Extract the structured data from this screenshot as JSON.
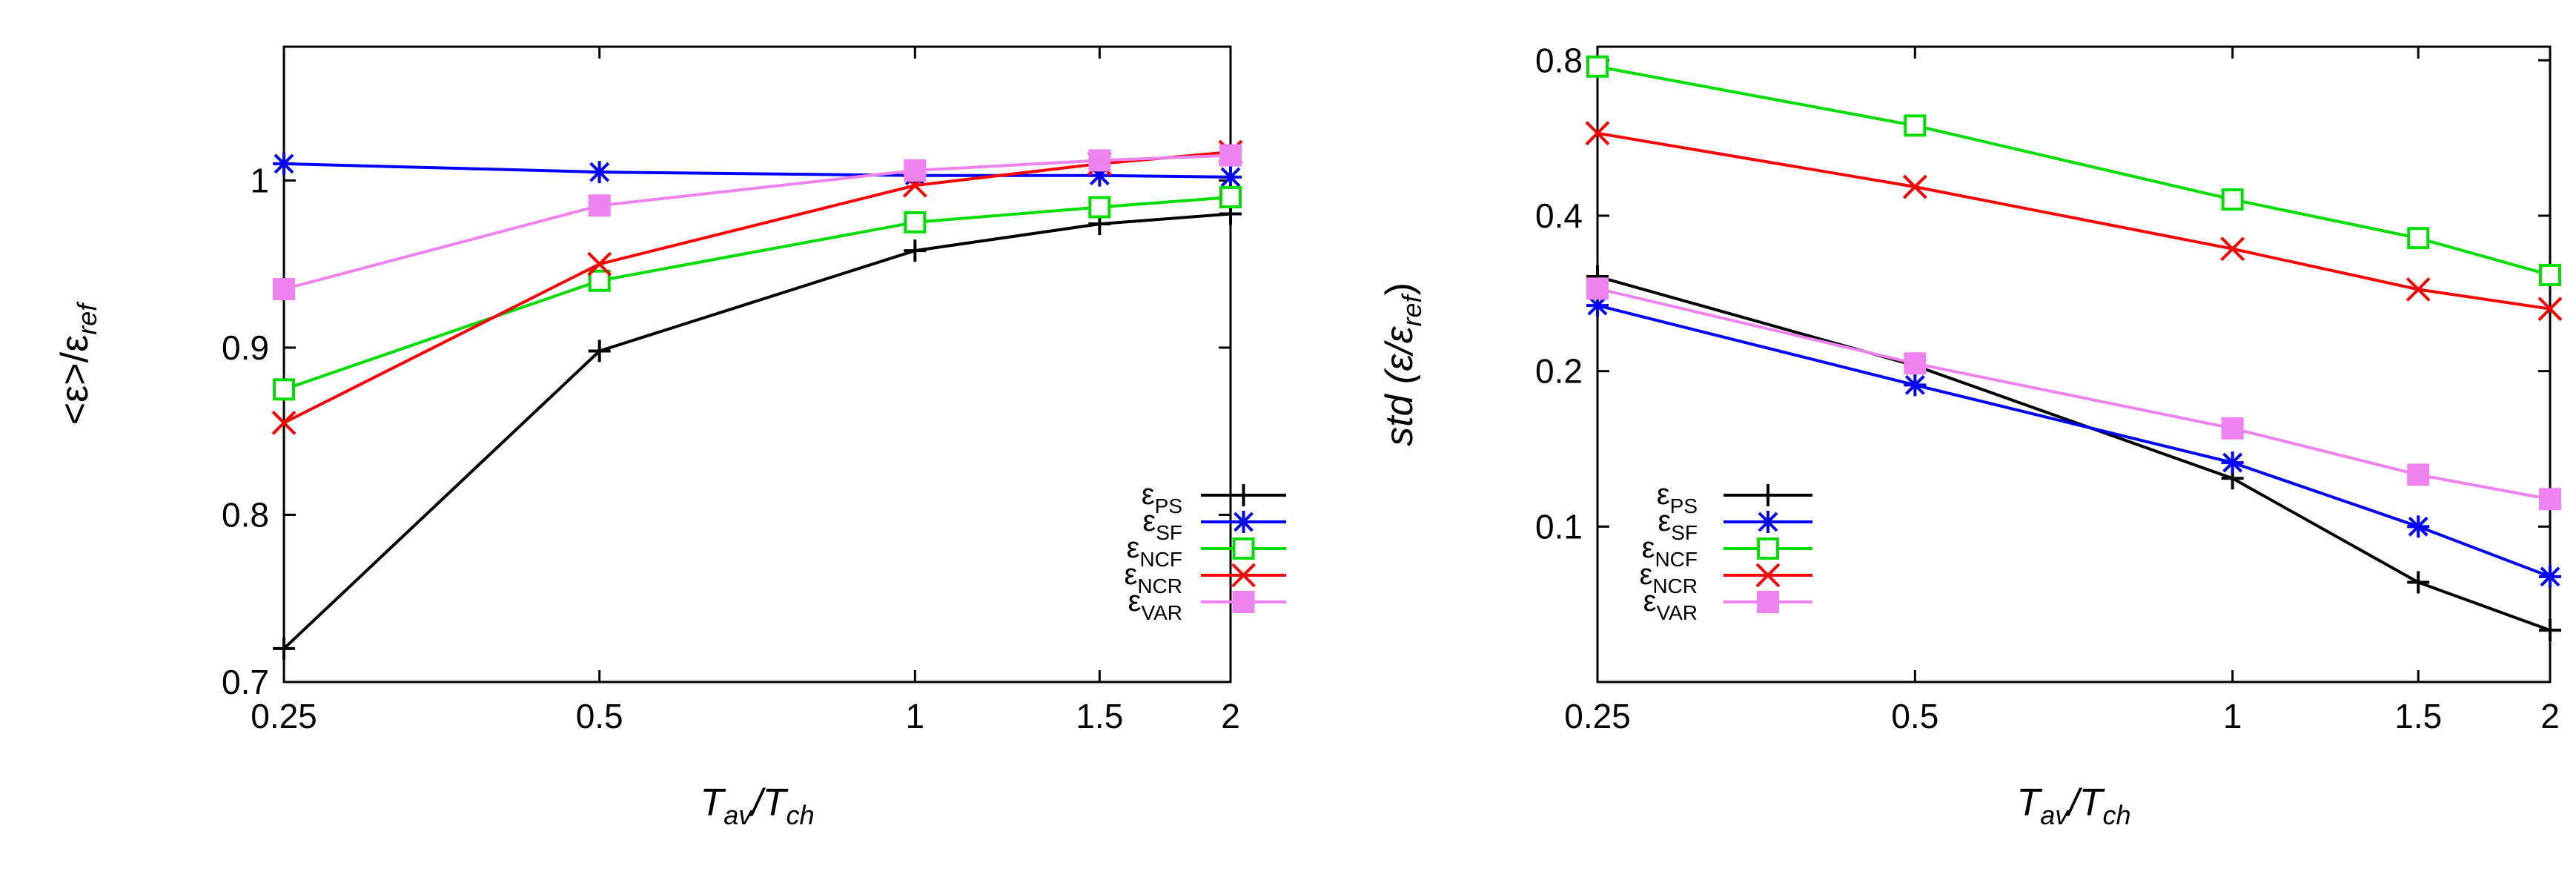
{
  "chart_data": [
    {
      "type": "line",
      "ylabel": "<ε>/ε_ref",
      "xlabel": "T_av/T_ch",
      "x": [
        0.25,
        0.5,
        1,
        1.5,
        2
      ],
      "x_tick_labels": [
        "0.25",
        "0.5",
        "1",
        "1.5",
        "2"
      ],
      "xscale": "log",
      "xlim": [
        0.25,
        2
      ],
      "y_ticks": [
        0.7,
        0.8,
        0.9,
        1
      ],
      "y_tick_labels": [
        "0.7",
        "0.8",
        "0.9",
        "1"
      ],
      "ylim": [
        0.7,
        1.08
      ],
      "yscale": "linear",
      "grid": false,
      "legend_position": "bottom-right",
      "series": [
        {
          "name": "ε_PS",
          "color": "#000000",
          "marker": "plus",
          "values": [
            0.72,
            0.898,
            0.958,
            0.974,
            0.98
          ]
        },
        {
          "name": "ε_SF",
          "color": "#0000ff",
          "marker": "star",
          "values": [
            1.01,
            1.005,
            1.003,
            1.003,
            1.002
          ]
        },
        {
          "name": "ε_NCF",
          "color": "#00dd00",
          "marker": "open-square",
          "values": [
            0.875,
            0.94,
            0.975,
            0.984,
            0.99
          ]
        },
        {
          "name": "ε_NCR",
          "color": "#ff0000",
          "marker": "x",
          "values": [
            0.855,
            0.95,
            0.997,
            1.01,
            1.017
          ]
        },
        {
          "name": "ε_VAR",
          "color": "#ee82ee",
          "marker": "filled-square",
          "values": [
            0.935,
            0.985,
            1.006,
            1.012,
            1.015
          ]
        }
      ]
    },
    {
      "type": "line",
      "ylabel": "std (ε/ε_ref)",
      "xlabel": "T_av/T_ch",
      "x": [
        0.25,
        0.5,
        1,
        1.5,
        2
      ],
      "x_tick_labels": [
        "0.25",
        "0.5",
        "1",
        "1.5",
        "2"
      ],
      "xscale": "log",
      "xlim": [
        0.25,
        2
      ],
      "y_ticks": [
        0.1,
        0.2,
        0.4,
        0.8
      ],
      "y_tick_labels": [
        "0.1",
        "0.2",
        "0.4",
        "0.8"
      ],
      "ylim": [
        0.05,
        0.85
      ],
      "yscale": "log",
      "grid": false,
      "legend_position": "bottom-left",
      "series": [
        {
          "name": "ε_PS",
          "color": "#000000",
          "marker": "plus",
          "values": [
            0.305,
            0.205,
            0.124,
            0.078,
            0.063
          ]
        },
        {
          "name": "ε_SF",
          "color": "#0000ff",
          "marker": "star",
          "values": [
            0.268,
            0.188,
            0.133,
            0.1,
            0.08
          ]
        },
        {
          "name": "ε_NCF",
          "color": "#00dd00",
          "marker": "open-square",
          "values": [
            0.778,
            0.598,
            0.43,
            0.362,
            0.307
          ]
        },
        {
          "name": "ε_NCR",
          "color": "#ff0000",
          "marker": "x",
          "values": [
            0.578,
            0.455,
            0.345,
            0.288,
            0.264
          ]
        },
        {
          "name": "ε_VAR",
          "color": "#ee82ee",
          "marker": "filled-square",
          "values": [
            0.289,
            0.207,
            0.155,
            0.126,
            0.113
          ]
        }
      ]
    }
  ]
}
